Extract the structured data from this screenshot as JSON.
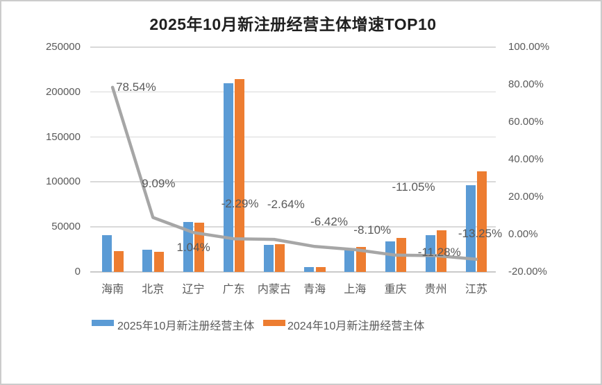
{
  "title": "2025年10月新注册经营主体增速TOP10",
  "colors": {
    "bar_2025": "#5B9BD5",
    "bar_2024": "#ED7D31",
    "growth_line": "#A6A6A6",
    "gridline": "#D9D9D9",
    "axis_text": "#595959",
    "title_text": "#1F1F1F"
  },
  "chart_data": {
    "type": "bar",
    "subtype": "grouped bars with secondary-axis line overlay",
    "title": "2025年10月新注册经营主体增速TOP10",
    "categories": [
      "海南",
      "北京",
      "辽宁",
      "广东",
      "内蒙古",
      "青海",
      "上海",
      "重庆",
      "贵州",
      "江苏"
    ],
    "series": [
      {
        "name": "2025年10月新注册经营主体",
        "kind": "bar",
        "color": "#5B9BD5",
        "axis": "primary",
        "values": [
          41000,
          24500,
          55600,
          209500,
          30200,
          5150,
          25300,
          33800,
          40800,
          96700
        ]
      },
      {
        "name": "2024年10月新注册经营主体",
        "kind": "bar",
        "color": "#ED7D31",
        "axis": "primary",
        "values": [
          23000,
          22500,
          55000,
          214400,
          31000,
          5500,
          27500,
          38000,
          46000,
          111500
        ]
      },
      {
        "name": "",
        "kind": "line",
        "color": "#A6A6A6",
        "axis": "secondary",
        "values": [
          78.54,
          9.09,
          1.04,
          -2.29,
          -2.64,
          -6.42,
          -8.1,
          -11.05,
          -11.28,
          -13.25
        ],
        "labels": [
          "78.54%",
          "9.09%",
          "1.04%",
          "-2.29%",
          "-2.64%",
          "-6.42%",
          "-8.10%",
          "-11.05%",
          "-11.28%",
          "-13.25%"
        ]
      }
    ],
    "left_axis": {
      "min": 0,
      "max": 250000,
      "step": 50000,
      "ticks": [
        "0",
        "50000",
        "100000",
        "150000",
        "200000",
        "250000"
      ]
    },
    "right_axis": {
      "min": -20,
      "max": 100,
      "step": 20,
      "ticks": [
        "-20.00%",
        "0.00%",
        "20.00%",
        "40.00%",
        "60.00%",
        "80.00%",
        "100.00%"
      ]
    },
    "grid": true,
    "legend_position": "bottom",
    "legend": [
      {
        "label": "2025年10月新注册经营主体",
        "color": "#5B9BD5"
      },
      {
        "label": "2024年10月新注册经营主体",
        "color": "#ED7D31"
      }
    ]
  }
}
